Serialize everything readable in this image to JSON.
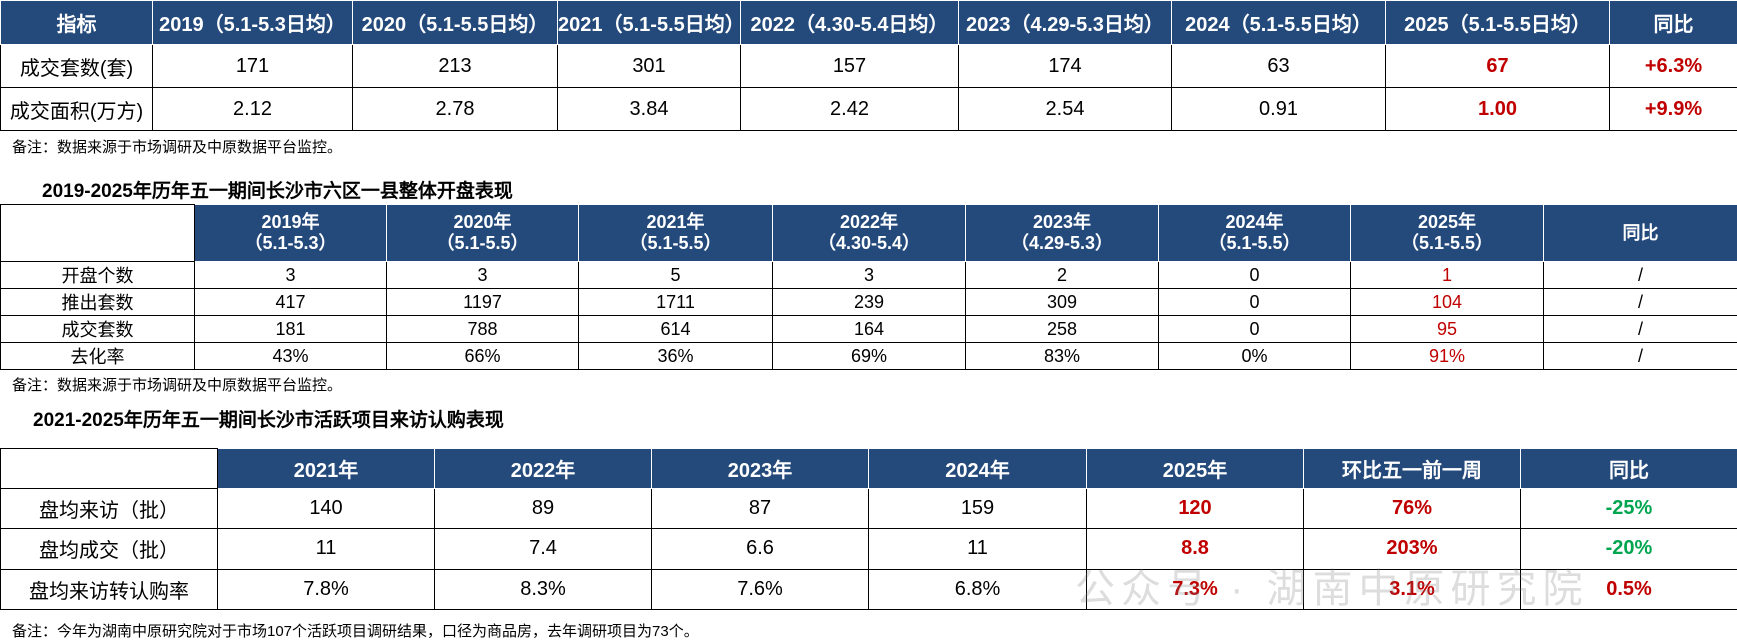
{
  "table1": {
    "header": [
      "指标",
      "2019（5.1-5.3日均）",
      "2020（5.1-5.5日均）",
      "2021（5.1-5.5日均）",
      "2022（4.30-5.4日均）",
      "2023（4.29-5.3日均）",
      "2024（5.1-5.5日均）",
      "2025（5.1-5.5日均）",
      "同比"
    ],
    "rows": [
      [
        "成交套数(套)",
        "171",
        "213",
        "301",
        "157",
        "174",
        "63",
        "67",
        "+6.3%"
      ],
      [
        "成交面积(万方)",
        "2.12",
        "2.78",
        "3.84",
        "2.42",
        "2.54",
        "0.91",
        "1.00",
        "+9.9%"
      ]
    ]
  },
  "note1": "备注：数据来源于市场调研及中原数据平台监控。",
  "title2": "2019-2025年历年五一期间长沙市六区一县整体开盘表现",
  "table2": {
    "header": [
      [
        "2019年",
        "（5.1-5.3）"
      ],
      [
        "2020年",
        "（5.1-5.5）"
      ],
      [
        "2021年",
        "（5.1-5.5）"
      ],
      [
        "2022年",
        "（4.30-5.4）"
      ],
      [
        "2023年",
        "（4.29-5.3）"
      ],
      [
        "2024年",
        "（5.1-5.5）"
      ],
      [
        "2025年",
        "（5.1-5.5）"
      ],
      [
        "同比"
      ]
    ],
    "rows": [
      [
        "开盘个数",
        "3",
        "3",
        "5",
        "3",
        "2",
        "0",
        "1",
        "/"
      ],
      [
        "推出套数",
        "417",
        "1197",
        "1711",
        "239",
        "309",
        "0",
        "104",
        "/"
      ],
      [
        "成交套数",
        "181",
        "788",
        "614",
        "164",
        "258",
        "0",
        "95",
        "/"
      ],
      [
        "去化率",
        "43%",
        "66%",
        "36%",
        "69%",
        "83%",
        "0%",
        "91%",
        "/"
      ]
    ]
  },
  "note2": "备注：数据来源于市场调研及中原数据平台监控。",
  "title3": "2021-2025年历年五一期间长沙市活跃项目来访认购表现",
  "table3": {
    "header": [
      "2021年",
      "2022年",
      "2023年",
      "2024年",
      "2025年",
      "环比五一前一周",
      "同比"
    ],
    "rows": [
      [
        "盘均来访（批）",
        "140",
        "89",
        "87",
        "159",
        "120",
        "76%",
        "-25%"
      ],
      [
        "盘均成交（批）",
        "11",
        "7.4",
        "6.6",
        "11",
        "8.8",
        "203%",
        "-20%"
      ],
      [
        "盘均来访转认购率",
        "7.8%",
        "8.3%",
        "7.6%",
        "6.8%",
        "7.3%",
        "3.1%",
        "0.5%"
      ]
    ]
  },
  "note3": "备注：今年为湖南中原研究院对于市场107个活跃项目调研结果，口径为商品房，去年调研项目为73个。",
  "watermark": "公众号 · 湖南中原研究院"
}
